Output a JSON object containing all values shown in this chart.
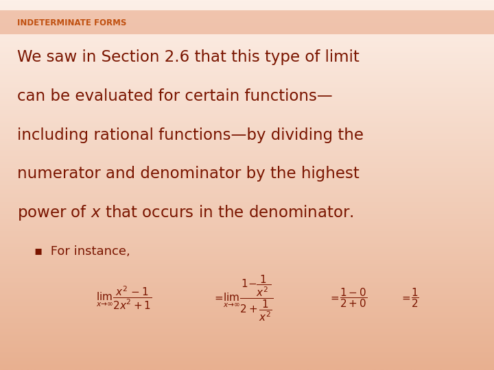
{
  "title": "INDETERMINATE FORMS",
  "title_color": "#C05010",
  "title_fontsize": 8.5,
  "bg_color_top": "#FDF0E8",
  "bg_color_bottom": "#E8B090",
  "body_color": "#7A1500",
  "body_fontsize": 16.5,
  "bullet_fontsize": 13,
  "formula_fontsize": 11,
  "body_lines": [
    "We saw in Section 2.6 that this type of limit",
    "can be evaluated for certain functions—",
    "including rational functions—by dividing the",
    "numerator and denominator by the highest",
    "power of $x$ that occurs in the denominator."
  ],
  "bullet_text": "▪  For instance,",
  "header_bar_color": "#E8A888",
  "header_bar_alpha": 0.6,
  "formula_color": "#7A1500"
}
